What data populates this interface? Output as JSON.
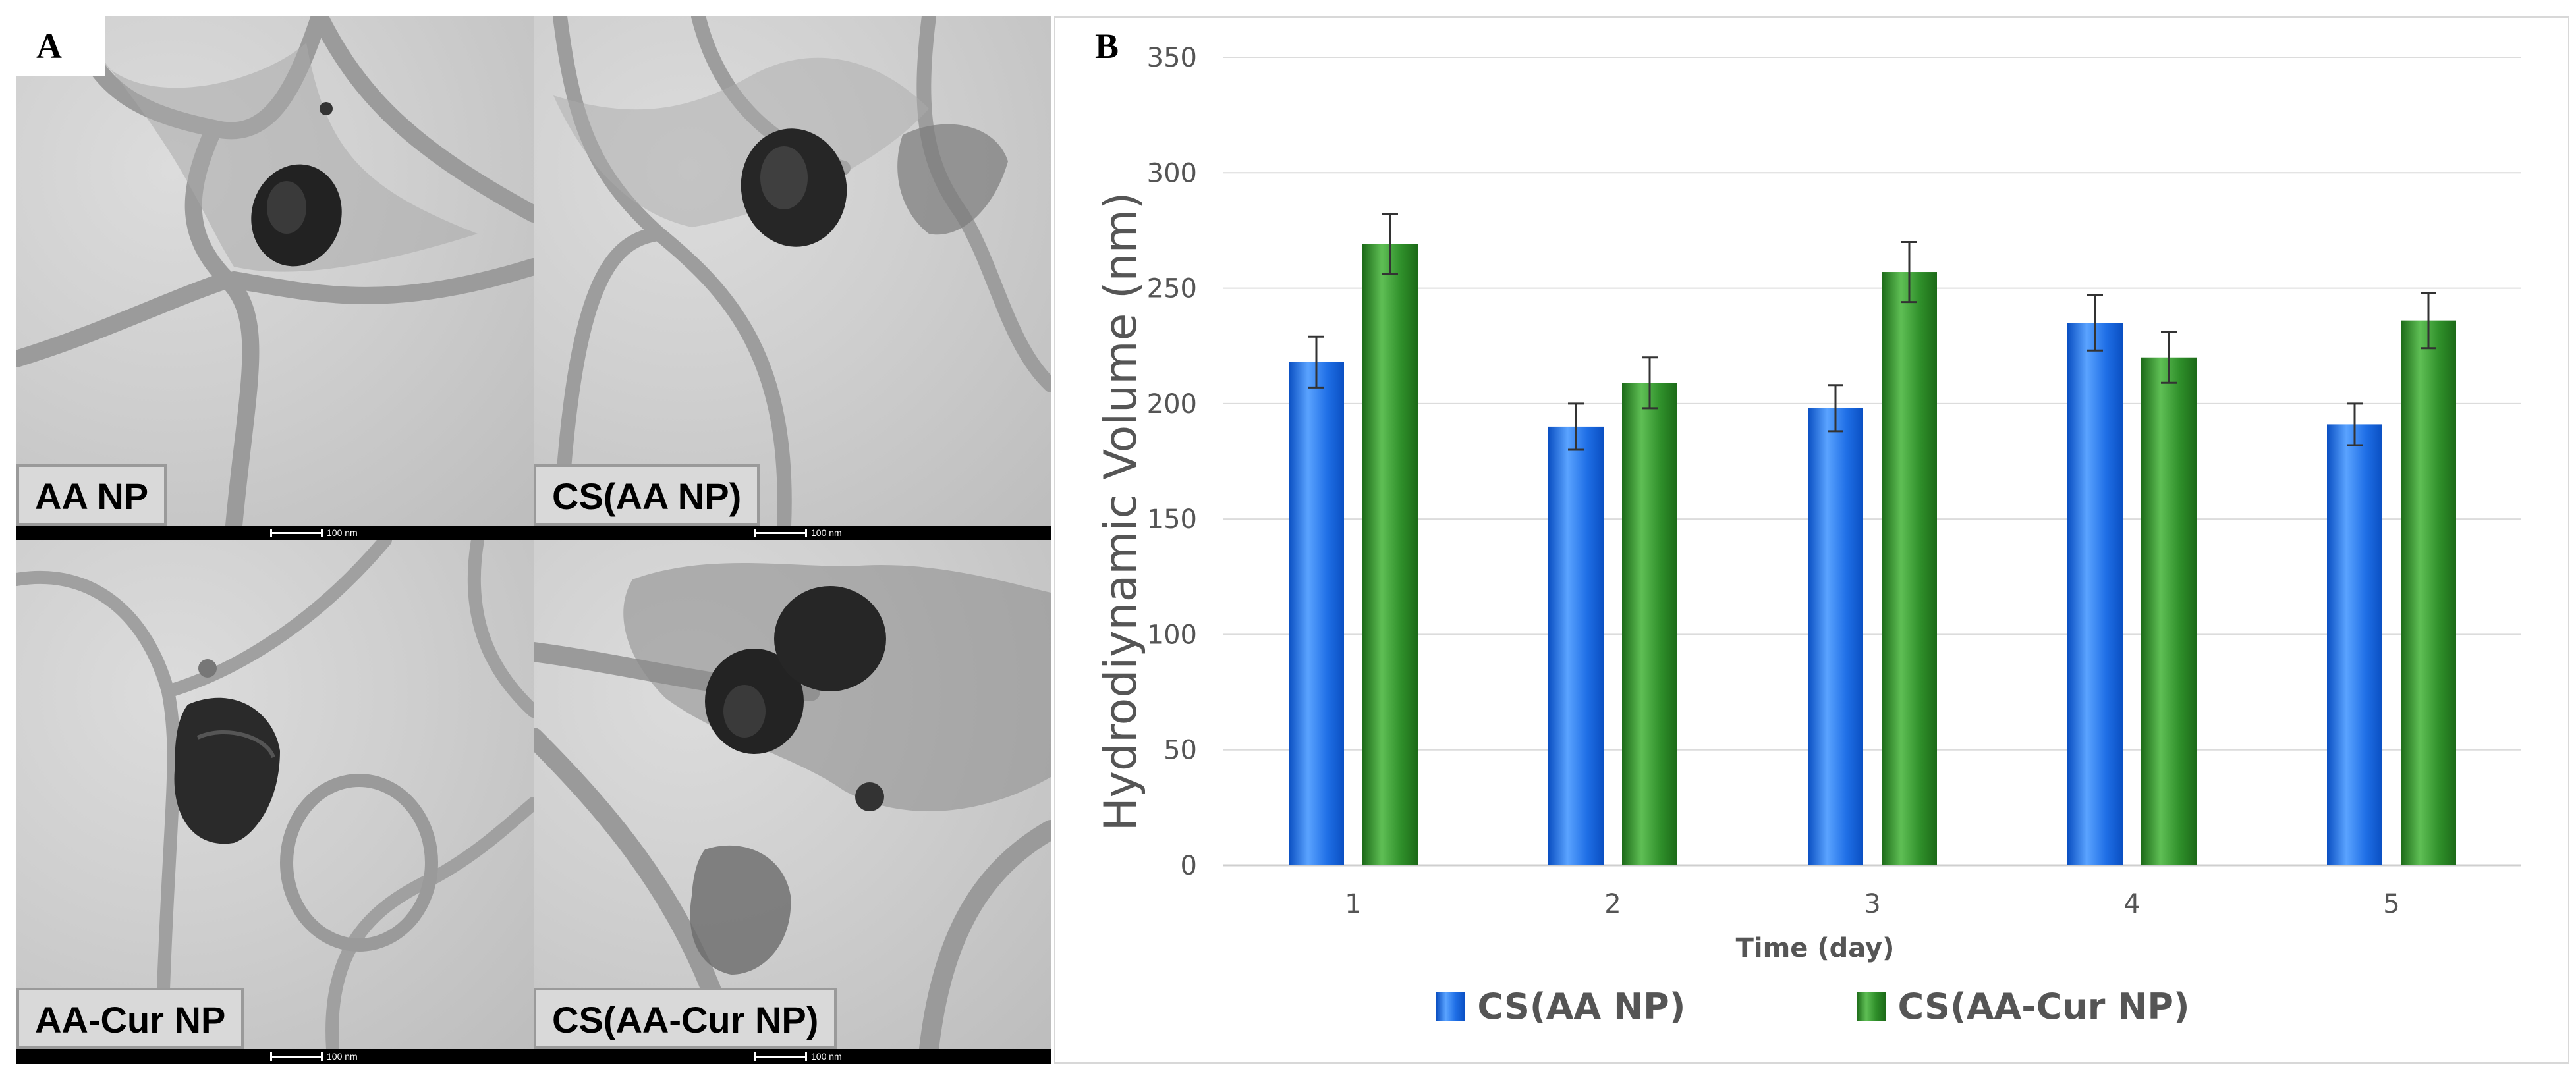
{
  "panel_a": {
    "letter": "A",
    "images": [
      {
        "label": "AA NP"
      },
      {
        "label": "CS(AA NP)"
      },
      {
        "label": "AA-Cur NP"
      },
      {
        "label": "CS(AA-Cur NP)"
      }
    ],
    "scale_label": "100 nm"
  },
  "panel_b": {
    "letter": "B"
  },
  "chart_data": {
    "type": "bar",
    "title": "",
    "xlabel": "Time (day)",
    "ylabel": "Hydrodiynamic Volume (nm)",
    "categories": [
      "1",
      "2",
      "3",
      "4",
      "5"
    ],
    "ylim": [
      0,
      350
    ],
    "yticks": [
      0,
      50,
      100,
      150,
      200,
      250,
      300,
      350
    ],
    "grid": true,
    "legend_position": "bottom",
    "series": [
      {
        "name": "CS(AA NP)",
        "color": "#1f6fe6",
        "values": [
          218,
          190,
          198,
          235,
          191
        ],
        "errors": [
          11,
          10,
          10,
          12,
          9
        ]
      },
      {
        "name": "CS(AA-Cur NP)",
        "color": "#2f8f2a",
        "values": [
          269,
          209,
          257,
          220,
          236
        ],
        "errors": [
          13,
          11,
          13,
          11,
          12
        ]
      }
    ]
  }
}
